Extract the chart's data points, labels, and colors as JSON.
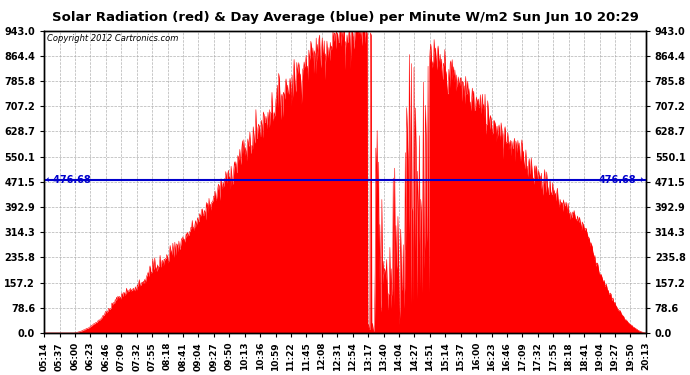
{
  "title": "Solar Radiation (red) & Day Average (blue) per Minute W/m2 Sun Jun 10 20:29",
  "copyright_text": "Copyright 2012 Cartronics.com",
  "bg_color": "#ffffff",
  "plot_bg_color": "#ffffff",
  "grid_color": "#aaaaaa",
  "red_color": "#ff0000",
  "blue_color": "#0000cc",
  "avg_value": 476.68,
  "y_max": 943.0,
  "y_min": 0.0,
  "yticks": [
    0.0,
    78.6,
    157.2,
    235.8,
    314.3,
    392.9,
    471.5,
    550.1,
    628.7,
    707.2,
    785.8,
    864.4,
    943.0
  ],
  "xtick_labels": [
    "05:14",
    "05:37",
    "06:00",
    "06:23",
    "06:46",
    "07:09",
    "07:32",
    "07:55",
    "08:18",
    "08:41",
    "09:04",
    "09:27",
    "09:50",
    "10:13",
    "10:36",
    "10:59",
    "11:22",
    "11:45",
    "12:08",
    "12:31",
    "12:54",
    "13:17",
    "13:40",
    "14:04",
    "14:27",
    "14:51",
    "15:14",
    "15:37",
    "16:00",
    "16:23",
    "16:46",
    "17:09",
    "17:32",
    "17:55",
    "18:18",
    "18:41",
    "19:04",
    "19:27",
    "19:50",
    "20:13"
  ]
}
